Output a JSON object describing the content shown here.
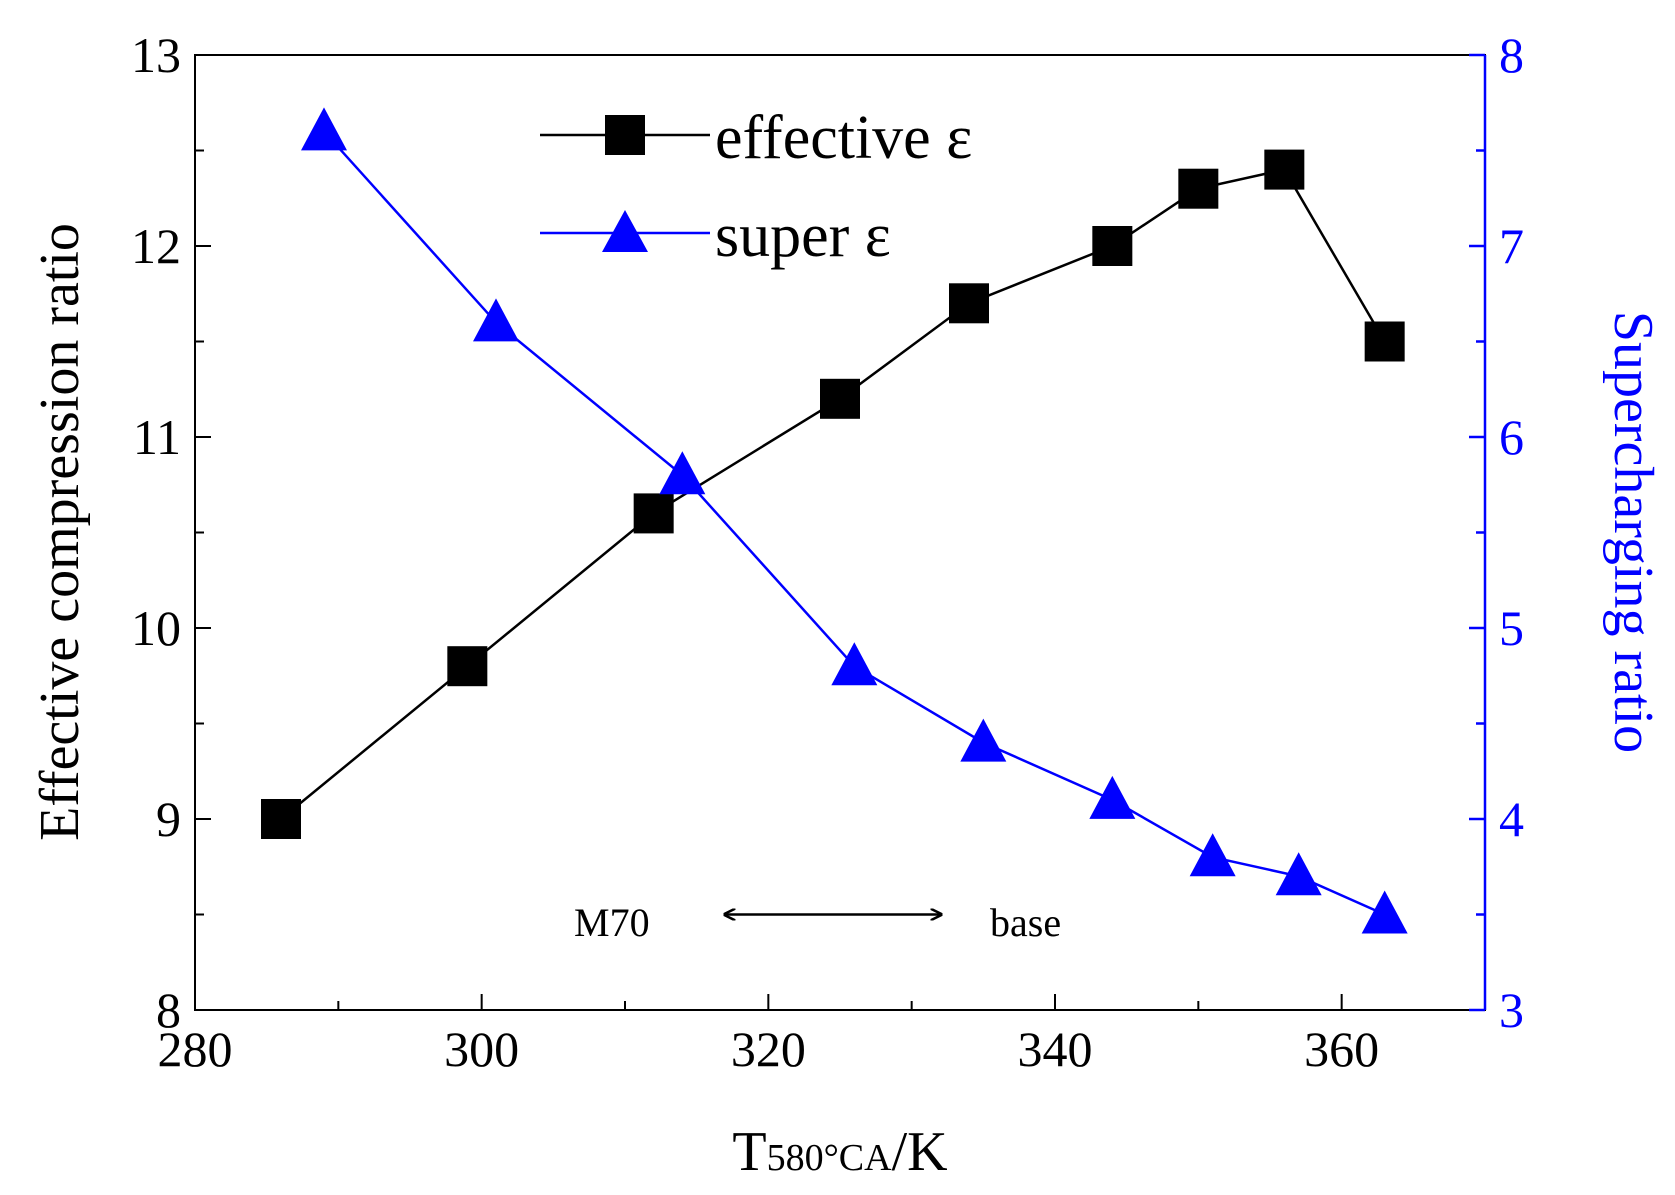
{
  "chart_data": {
    "type": "line",
    "x_axis": {
      "label_main": "T",
      "label_sub": "580°CA",
      "label_unit": "/K",
      "min": 280,
      "max": 370,
      "ticks": [
        280,
        300,
        320,
        340,
        360
      ],
      "tick_labels": [
        "280",
        "300",
        "320",
        "340",
        "360"
      ]
    },
    "y_axis_left": {
      "label": "Effective compression ratio",
      "min": 8,
      "max": 13,
      "ticks": [
        8,
        9,
        10,
        11,
        12,
        13
      ],
      "tick_labels": [
        "8",
        "9",
        "10",
        "11",
        "12",
        "13"
      ],
      "color": "#000000"
    },
    "y_axis_right": {
      "label": "Supercharging ratio",
      "min": 3,
      "max": 8,
      "ticks": [
        3,
        4,
        5,
        6,
        7,
        8
      ],
      "tick_labels": [
        "3",
        "4",
        "5",
        "6",
        "7",
        "8"
      ],
      "color": "#0000ff"
    },
    "series": [
      {
        "name": "effective ε",
        "axis": "left",
        "marker": "square",
        "color": "#000000",
        "x": [
          286,
          299,
          312,
          325,
          334,
          344,
          350,
          356,
          363
        ],
        "y": [
          9.0,
          9.8,
          10.6,
          11.2,
          11.7,
          12.0,
          12.3,
          12.4,
          11.5
        ]
      },
      {
        "name": "super ε",
        "axis": "right",
        "marker": "triangle",
        "color": "#0000ff",
        "x": [
          289,
          301,
          314,
          326,
          335,
          344,
          351,
          357,
          363
        ],
        "y": [
          7.6,
          6.6,
          5.8,
          4.8,
          4.4,
          4.1,
          3.8,
          3.7,
          3.5
        ]
      }
    ],
    "legend": {
      "placement": "top-center"
    },
    "annotations": {
      "left_text": "M70",
      "right_text": "base",
      "arrow": {
        "x_from": 317,
        "x_to": 332,
        "y_left_axis": 8.5
      }
    },
    "grid": false
  }
}
